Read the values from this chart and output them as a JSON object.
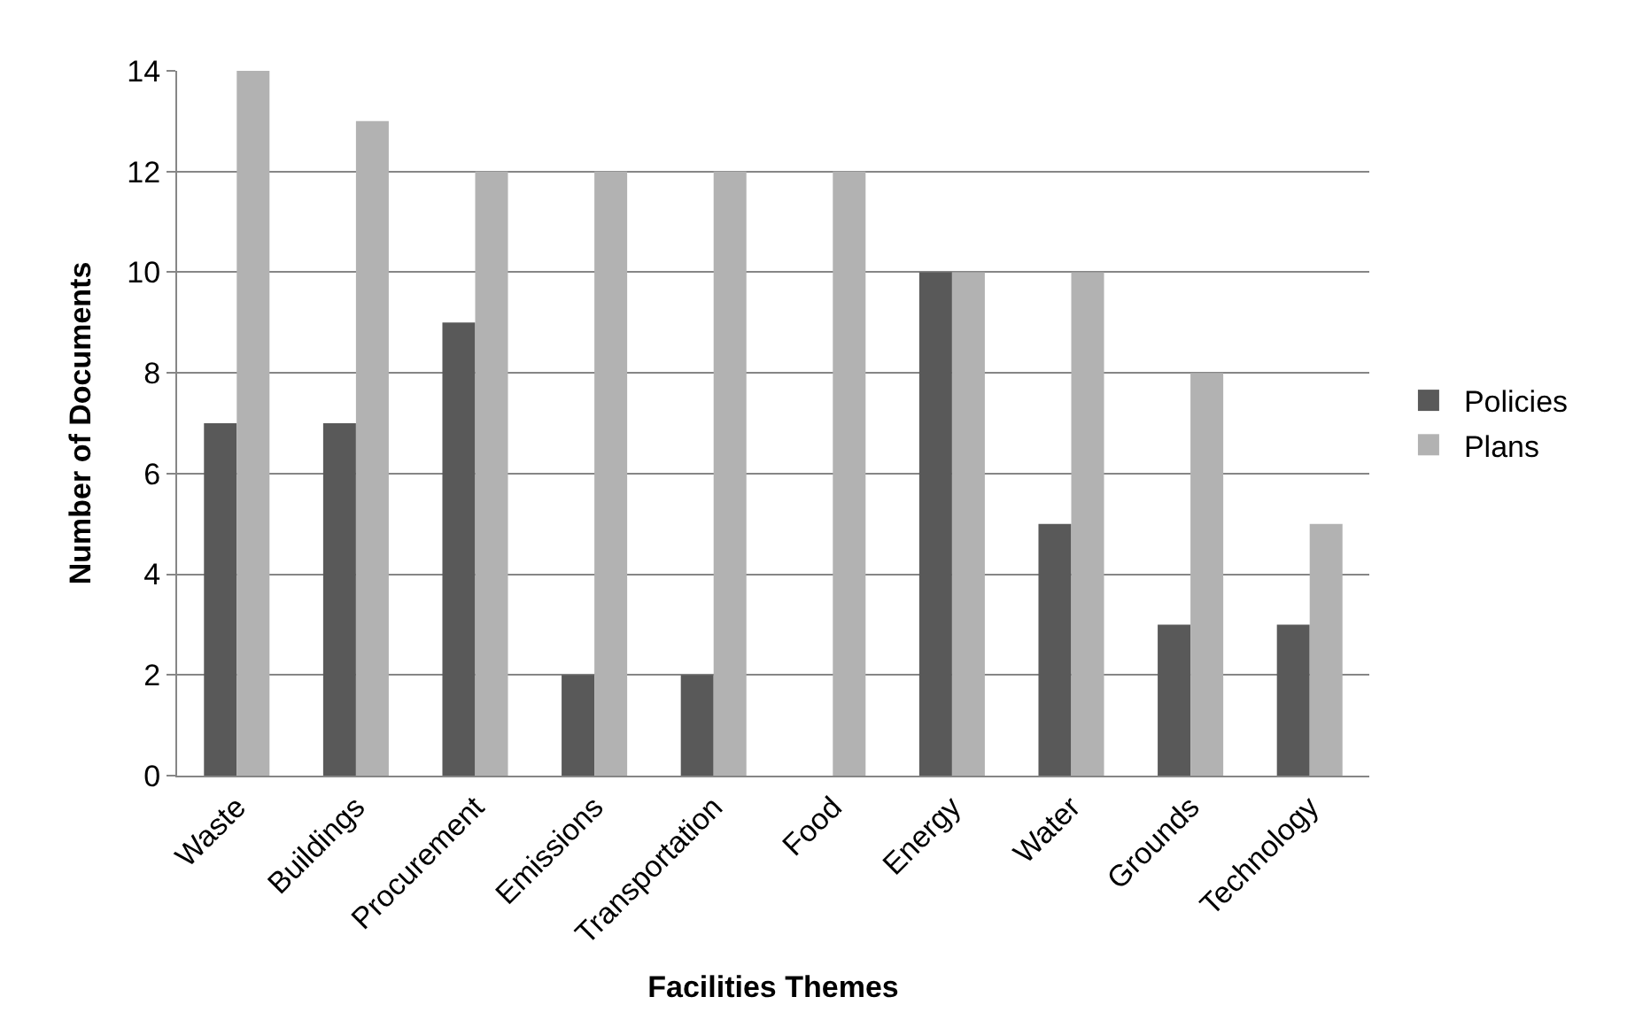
{
  "chart_data": {
    "type": "bar",
    "xlabel": "Facilities Themes",
    "ylabel": "Number of Documents",
    "categories": [
      "Waste",
      "Buildings",
      "Procurement",
      "Emissions",
      "Transportation",
      "Food",
      "Energy",
      "Water",
      "Grounds",
      "Technology"
    ],
    "series": [
      {
        "name": "Policies",
        "color": "#595959",
        "values": [
          7,
          7,
          9,
          2,
          2,
          0,
          10,
          5,
          3,
          3
        ]
      },
      {
        "name": "Plans",
        "color": "#b2b2b2",
        "values": [
          14,
          13,
          12,
          12,
          12,
          12,
          10,
          10,
          8,
          5
        ]
      }
    ],
    "ylim": [
      0,
      14
    ],
    "yticks": [
      0,
      2,
      4,
      6,
      8,
      10,
      12,
      14
    ],
    "grid": "y",
    "legend": "right"
  }
}
